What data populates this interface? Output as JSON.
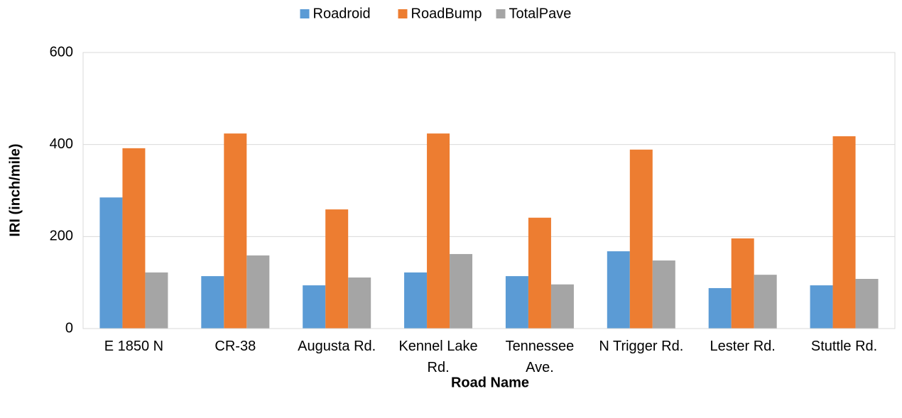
{
  "chart_data": {
    "type": "bar",
    "x_label": "Road Name",
    "y_label": "IRI (inch/mile)",
    "categories": [
      "E 1850 N",
      "CR-38",
      "Augusta Rd.",
      "Kennel Lake Rd.",
      "Tennessee Ave.",
      "N Trigger Rd.",
      "Lester Rd.",
      "Stuttle Rd."
    ],
    "series": [
      {
        "name": "Roadroid",
        "color": "#5b9bd5",
        "values": [
          285,
          114,
          94,
          122,
          114,
          168,
          88,
          94
        ]
      },
      {
        "name": "RoadBump",
        "color": "#ed7d31",
        "values": [
          392,
          424,
          259,
          424,
          241,
          389,
          196,
          418
        ]
      },
      {
        "name": "TotalPave",
        "color": "#a5a5a5",
        "values": [
          122,
          159,
          111,
          162,
          96,
          148,
          117,
          108
        ]
      }
    ],
    "ylim": [
      0,
      600
    ],
    "yticks": [
      0,
      200,
      400,
      600
    ],
    "grid": true,
    "legend": "top"
  }
}
